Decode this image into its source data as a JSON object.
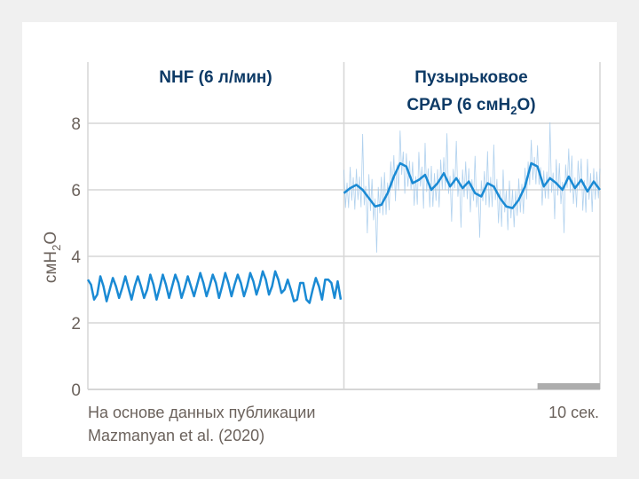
{
  "chart_data": {
    "type": "line",
    "panels": [
      {
        "title": "NHF (6 л/мин)"
      },
      {
        "title_line1": "Пузырьковое",
        "title_line2_pre": "CPAP (6 смH",
        "title_line2_sub": "2",
        "title_line2_post": "O)"
      }
    ],
    "ylabel_pre": "смH",
    "ylabel_sub": "2",
    "ylabel_post": "O",
    "ylim": [
      0,
      8
    ],
    "yticks": [
      "0",
      "2",
      "4",
      "6",
      "8"
    ],
    "xlim_seconds": [
      0,
      82
    ],
    "scale_bar_label": "10 сек.",
    "scale_bar_seconds": 10,
    "source_line1": "На основе данных публикации",
    "source_line2": "Mazmanyan et al. (2020)",
    "series": [
      {
        "name": "NHF",
        "color": "#1a8ad4",
        "t_start": 0,
        "dt": 0.5,
        "values": [
          3.3,
          3.15,
          2.7,
          2.85,
          3.4,
          3.1,
          2.65,
          3.0,
          3.35,
          3.1,
          2.75,
          3.05,
          3.4,
          3.05,
          2.7,
          3.1,
          3.4,
          3.1,
          2.75,
          3.0,
          3.45,
          3.15,
          2.7,
          3.05,
          3.45,
          3.15,
          2.75,
          3.1,
          3.45,
          3.2,
          2.75,
          3.05,
          3.4,
          3.1,
          2.8,
          3.15,
          3.5,
          3.2,
          2.8,
          3.1,
          3.45,
          3.2,
          2.75,
          3.1,
          3.5,
          3.2,
          2.8,
          3.15,
          3.45,
          3.2,
          2.8,
          3.1,
          3.5,
          3.25,
          2.85,
          3.15,
          3.55,
          3.3,
          2.85,
          3.1,
          3.55,
          3.3,
          2.9,
          3.0,
          3.3,
          3.0,
          2.65,
          2.7,
          3.2,
          3.2,
          2.7,
          2.6,
          3.0,
          3.35,
          3.1,
          2.7,
          3.3,
          3.3,
          3.2,
          2.75,
          3.25,
          2.7
        ]
      },
      {
        "name": "CPAP",
        "color": "#1a8ad4",
        "t_start": 41,
        "dt": 1,
        "values": [
          5.9,
          6.05,
          6.15,
          6.0,
          5.75,
          5.5,
          5.55,
          5.9,
          6.4,
          6.8,
          6.7,
          6.2,
          6.3,
          6.45,
          6.0,
          6.2,
          6.5,
          6.1,
          6.35,
          6.05,
          6.25,
          5.9,
          5.8,
          6.2,
          6.1,
          5.75,
          5.5,
          5.45,
          5.7,
          6.1,
          6.8,
          6.7,
          6.1,
          6.35,
          6.2,
          6.0,
          6.4,
          6.05,
          6.3,
          5.95,
          6.25,
          6.0
        ]
      },
      {
        "name": "CPAP raw",
        "color": "#9cc6ea",
        "t_start": 41,
        "dt": 0.25,
        "noise": [
          0.5,
          -0.6,
          0.3,
          -0.4,
          0.8,
          -0.5,
          0.2,
          -0.9,
          0.6,
          -0.3,
          0.4,
          -0.7,
          1.2,
          -0.5,
          0.3,
          -0.8,
          0.9,
          -0.4,
          0.5,
          -0.6,
          0.3,
          -1.0,
          0.7,
          -0.3,
          0.6,
          -0.5,
          1.0,
          -0.4,
          0.4,
          -0.8,
          0.5,
          -0.3,
          0.8,
          -0.6,
          0.2,
          -0.9,
          0.7,
          -0.4,
          0.5,
          -0.6
        ]
      }
    ]
  }
}
